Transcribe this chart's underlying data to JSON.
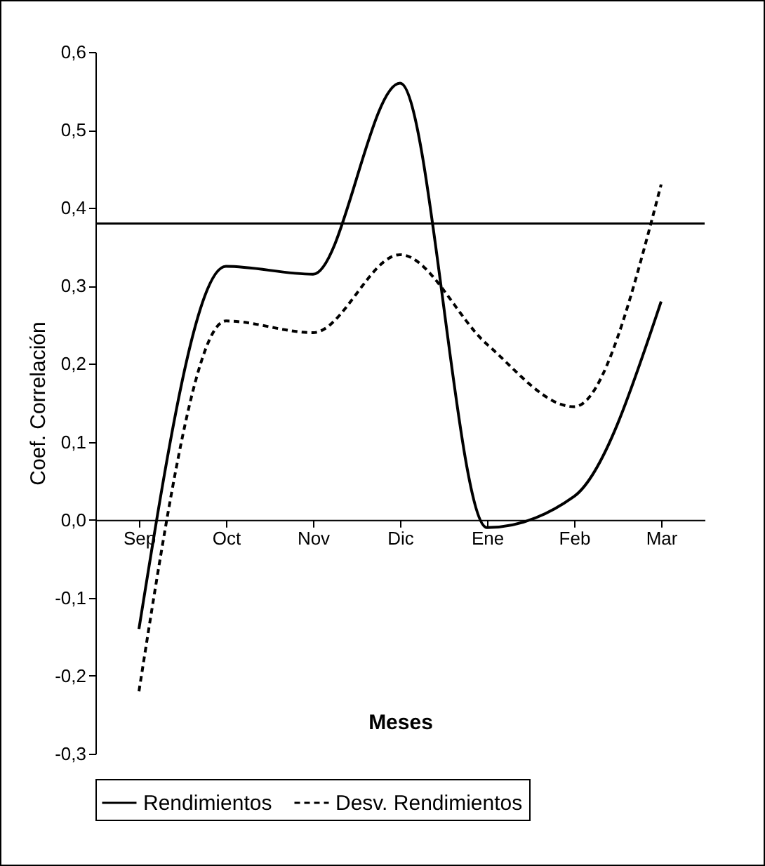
{
  "chart_data": {
    "type": "line",
    "xlabel": "Meses",
    "ylabel": "Coef. Correlación",
    "categories": [
      "Sep",
      "Oct",
      "Nov",
      "Dic",
      "Ene",
      "Feb",
      "Mar"
    ],
    "series": [
      {
        "name": "Rendimientos",
        "color": "#000000",
        "line_style": "solid",
        "values": [
          -0.14,
          0.325,
          0.315,
          0.56,
          -0.01,
          0.03,
          0.28
        ]
      },
      {
        "name": "Desv. Rendimientos",
        "color": "#000000",
        "line_style": "dashed",
        "values": [
          -0.22,
          0.255,
          0.24,
          0.34,
          0.225,
          0.145,
          0.43
        ]
      }
    ],
    "ylim": [
      -0.3,
      0.6
    ],
    "yticks": [
      {
        "value": -0.3,
        "label": "-0,3"
      },
      {
        "value": -0.2,
        "label": "-0,2"
      },
      {
        "value": -0.1,
        "label": "-0,1"
      },
      {
        "value": 0,
        "label": "0,0"
      },
      {
        "value": 0.1,
        "label": "0,1"
      },
      {
        "value": 0.2,
        "label": "0,2"
      },
      {
        "value": 0.3,
        "label": "0,3"
      },
      {
        "value": 0.4,
        "label": "0,4"
      },
      {
        "value": 0.5,
        "label": "0,5"
      },
      {
        "value": 0.6,
        "label": "0,6"
      }
    ],
    "ref_lines": [
      {
        "axis": "y",
        "value": 0.38,
        "color": "#000000"
      }
    ],
    "legend": "bottom",
    "marker": "none"
  }
}
